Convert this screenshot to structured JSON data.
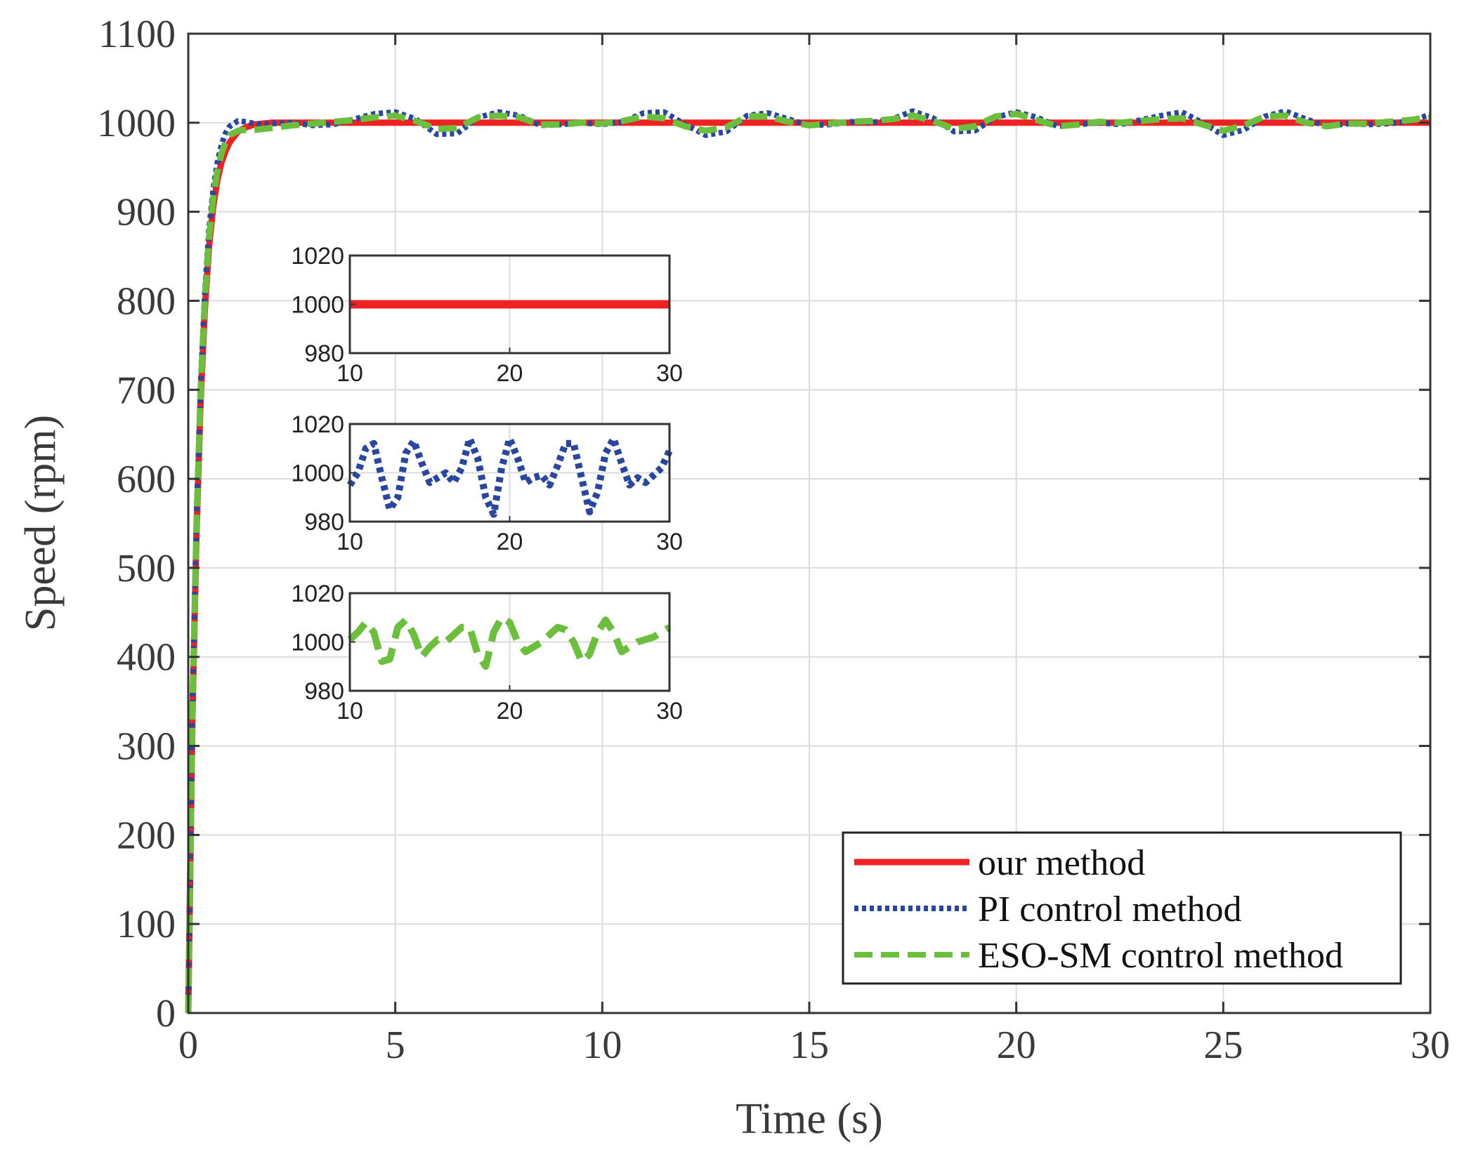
{
  "chart_data": {
    "type": "line",
    "title": "",
    "xlabel": "Time (s)",
    "ylabel": "Speed (rpm)",
    "xlim": [
      0,
      30
    ],
    "ylim": [
      0,
      1100
    ],
    "xticks": [
      "0",
      "5",
      "10",
      "15",
      "20",
      "25",
      "30"
    ],
    "yticks": [
      "0",
      "100",
      "200",
      "300",
      "400",
      "500",
      "600",
      "700",
      "800",
      "900",
      "1000",
      "1100"
    ],
    "grid": true,
    "legend_position": "bottom-right",
    "setpoint": 1000,
    "series": [
      {
        "name": "our method",
        "color": "#ee2222",
        "style": "solid",
        "x": [
          0,
          0.1,
          0.2,
          0.3,
          0.4,
          0.5,
          0.6,
          0.7,
          0.8,
          0.9,
          1.0,
          1.2,
          1.4,
          1.6,
          1.8,
          2.0,
          2.5,
          3,
          5,
          10,
          15,
          20,
          25,
          30
        ],
        "y": [
          0,
          330,
          540,
          690,
          790,
          860,
          905,
          935,
          955,
          968,
          978,
          990,
          995,
          998,
          999,
          1000,
          1000,
          1000,
          1000,
          1000,
          1000,
          1000,
          1000,
          1000
        ]
      },
      {
        "name": "PI control method",
        "color": "#2a47a0",
        "style": "dotted",
        "x": [
          0,
          0.1,
          0.2,
          0.3,
          0.4,
          0.5,
          0.6,
          0.7,
          0.8,
          0.9,
          1.0,
          1.2,
          1.4,
          1.6,
          1.8,
          2.0,
          2.5,
          3.0,
          3.5,
          4.0,
          4.5,
          5.0,
          5.5,
          6.0,
          6.5,
          7.0,
          7.5,
          8.0,
          8.5,
          9.0,
          9.5,
          10.0,
          10.5,
          11.0,
          11.5,
          12.0,
          12.5,
          13.0,
          13.5,
          14.0,
          14.5,
          15.0,
          15.5,
          16.0,
          16.5,
          17.0,
          17.5,
          18.0,
          18.5,
          19.0,
          19.5,
          20.0,
          20.5,
          21.0,
          21.5,
          22.0,
          22.5,
          23.0,
          23.5,
          24.0,
          24.5,
          25.0,
          25.5,
          26.0,
          26.5,
          27.0,
          27.5,
          28.0,
          28.5,
          29.0,
          29.5,
          30.0
        ],
        "y": [
          0,
          350,
          560,
          710,
          810,
          880,
          925,
          955,
          975,
          988,
          996,
          1002,
          1001,
          999,
          998,
          999,
          1000,
          997,
          998,
          1004,
          1010,
          1012,
          1004,
          987,
          988,
          1006,
          1012,
          1008,
          997,
          998,
          1000,
          998,
          1001,
          1011,
          1012,
          998,
          986,
          990,
          1008,
          1011,
          1004,
          997,
          998,
          1001,
          1000,
          1004,
          1013,
          1005,
          990,
          991,
          1006,
          1012,
          1006,
          996,
          998,
          1000,
          998,
          1003,
          1008,
          1012,
          1000,
          986,
          992,
          1007,
          1013,
          1004,
          996,
          999,
          998,
          999,
          1002,
          1009
        ]
      },
      {
        "name": "ESO-SM control method",
        "color": "#6cbf3c",
        "style": "dashed",
        "x": [
          0,
          0.1,
          0.2,
          0.3,
          0.4,
          0.5,
          0.6,
          0.7,
          0.8,
          0.9,
          1.0,
          1.2,
          1.4,
          1.6,
          1.8,
          2.0,
          2.5,
          3.0,
          3.5,
          4.0,
          4.5,
          5.0,
          5.5,
          6.0,
          6.5,
          7.0,
          7.5,
          8.0,
          8.5,
          9.0,
          9.5,
          10.0,
          10.5,
          11.0,
          11.5,
          12.0,
          12.5,
          13.0,
          13.5,
          14.0,
          14.5,
          15.0,
          15.5,
          16.0,
          16.5,
          17.0,
          17.5,
          18.0,
          18.5,
          19.0,
          19.5,
          20.0,
          20.5,
          21.0,
          21.5,
          22.0,
          22.5,
          23.0,
          23.5,
          24.0,
          24.5,
          25.0,
          25.5,
          26.0,
          26.5,
          27.0,
          27.5,
          28.0,
          28.5,
          29.0,
          29.5,
          30.0
        ],
        "y": [
          0,
          340,
          550,
          700,
          800,
          870,
          915,
          945,
          965,
          978,
          986,
          991,
          992,
          992,
          993,
          994,
          997,
          999,
          1001,
          1003,
          1006,
          1008,
          1002,
          993,
          994,
          1006,
          1008,
          1006,
          998,
          998,
          1000,
          999,
          1002,
          1007,
          1005,
          996,
          991,
          995,
          1007,
          1007,
          1001,
          997,
          999,
          1001,
          1002,
          1004,
          1008,
          1002,
          993,
          996,
          1007,
          1010,
          1003,
          996,
          998,
          1001,
          1000,
          1002,
          1004,
          1005,
          998,
          991,
          997,
          1007,
          1008,
          1000,
          996,
          999,
          999,
          1001,
          1003,
          1006
        ]
      }
    ],
    "insets": [
      {
        "series": "our method",
        "xlim": [
          10,
          30
        ],
        "ylim": [
          980,
          1020
        ],
        "xticks": [
          "10",
          "20",
          "30"
        ],
        "yticks": [
          "980",
          "1000",
          "1020"
        ],
        "x": [
          10,
          30
        ],
        "y": [
          1000,
          1000
        ]
      },
      {
        "series": "PI control method",
        "xlim": [
          10,
          30
        ],
        "ylim": [
          980,
          1020
        ],
        "xticks": [
          "10",
          "20",
          "30"
        ],
        "yticks": [
          "980",
          "1000",
          "1020"
        ],
        "x": [
          10,
          10.5,
          11,
          11.5,
          12,
          12.5,
          13,
          13.5,
          14,
          14.5,
          15,
          15.5,
          16,
          16.5,
          17,
          17.5,
          18,
          18.5,
          19,
          19.5,
          20,
          20.5,
          21,
          21.5,
          22,
          22.5,
          23,
          23.5,
          24,
          24.5,
          25,
          25.5,
          26,
          26.5,
          27,
          27.5,
          28,
          28.5,
          29,
          29.5,
          30
        ],
        "y": [
          995,
          1000,
          1010,
          1012,
          998,
          985,
          990,
          1008,
          1013,
          1004,
          996,
          998,
          1000,
          996,
          1002,
          1014,
          1006,
          990,
          983,
          1002,
          1014,
          1006,
          996,
          998,
          999,
          995,
          1003,
          1012,
          1012,
          998,
          984,
          992,
          1008,
          1014,
          1004,
          995,
          998,
          996,
          999,
          1002,
          1009
        ]
      },
      {
        "series": "ESO-SM control method",
        "xlim": [
          10,
          30
        ],
        "ylim": [
          980,
          1020
        ],
        "xticks": [
          "10",
          "20",
          "30"
        ],
        "yticks": [
          "980",
          "1000",
          "1020"
        ],
        "x": [
          10,
          10.5,
          11,
          11.5,
          12,
          12.5,
          13,
          13.5,
          14,
          14.5,
          15,
          15.5,
          16,
          16.5,
          17,
          17.5,
          18,
          18.5,
          19,
          19.5,
          20,
          20.5,
          21,
          21.5,
          22,
          22.5,
          23,
          23.5,
          24,
          24.5,
          25,
          25.5,
          26,
          26.5,
          27,
          27.5,
          28,
          28.5,
          29,
          29.5,
          30
        ],
        "y": [
          1001,
          1004,
          1008,
          1004,
          992,
          993,
          1006,
          1009,
          1003,
          994,
          998,
          1001,
          1000,
          1003,
          1006,
          1006,
          995,
          990,
          1004,
          1010,
          1008,
          1000,
          996,
          998,
          1000,
          1003,
          1006,
          1005,
          1000,
          992,
          995,
          1004,
          1009,
          1004,
          996,
          998,
          1000,
          1001,
          1002,
          1004,
          1006
        ]
      }
    ]
  }
}
